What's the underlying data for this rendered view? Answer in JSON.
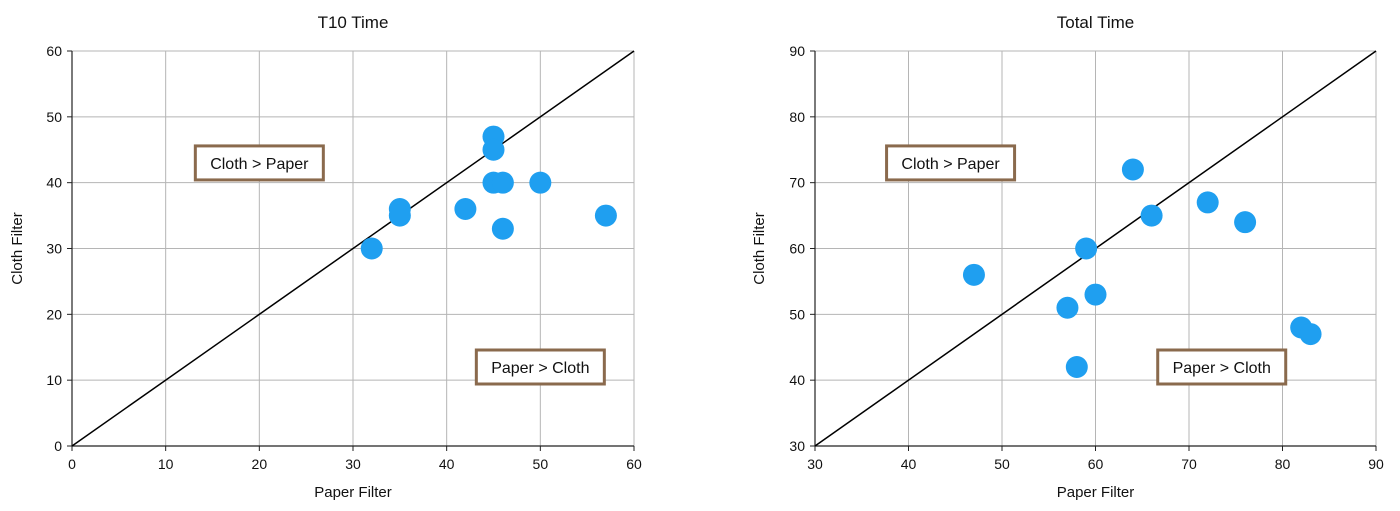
{
  "chart_data": [
    {
      "type": "scatter",
      "title": "T10 Time",
      "xlabel": "Paper Filter",
      "ylabel": "Cloth Filter",
      "xlim": [
        0,
        60
      ],
      "ylim": [
        0,
        60
      ],
      "xticks": [
        0,
        10,
        20,
        30,
        40,
        50,
        60
      ],
      "yticks": [
        0,
        10,
        20,
        30,
        40,
        50,
        60
      ],
      "grid": true,
      "reference_line": "y = x",
      "point_color": "#1f9ff0",
      "points": [
        {
          "x": 32,
          "y": 30
        },
        {
          "x": 35,
          "y": 36
        },
        {
          "x": 35,
          "y": 35
        },
        {
          "x": 42,
          "y": 36
        },
        {
          "x": 45,
          "y": 47
        },
        {
          "x": 45,
          "y": 45
        },
        {
          "x": 45,
          "y": 40
        },
        {
          "x": 46,
          "y": 40
        },
        {
          "x": 46,
          "y": 33
        },
        {
          "x": 50,
          "y": 40
        },
        {
          "x": 57,
          "y": 35
        }
      ],
      "annotations": [
        {
          "text": "Cloth > Paper",
          "x": 20,
          "y": 43
        },
        {
          "text": "Paper > Cloth",
          "x": 50,
          "y": 12
        }
      ]
    },
    {
      "type": "scatter",
      "title": "Total Time",
      "xlabel": "Paper Filter",
      "ylabel": "Cloth Filter",
      "xlim": [
        30,
        90
      ],
      "ylim": [
        30,
        90
      ],
      "xticks": [
        30,
        40,
        50,
        60,
        70,
        80,
        90
      ],
      "yticks": [
        30,
        40,
        50,
        60,
        70,
        80,
        90
      ],
      "grid": true,
      "reference_line": "y = x",
      "point_color": "#1f9ff0",
      "points": [
        {
          "x": 47,
          "y": 56
        },
        {
          "x": 57,
          "y": 51
        },
        {
          "x": 58,
          "y": 42
        },
        {
          "x": 59,
          "y": 60
        },
        {
          "x": 60,
          "y": 53
        },
        {
          "x": 64,
          "y": 72
        },
        {
          "x": 66,
          "y": 65
        },
        {
          "x": 72,
          "y": 67
        },
        {
          "x": 76,
          "y": 64
        },
        {
          "x": 82,
          "y": 48
        },
        {
          "x": 83,
          "y": 47
        }
      ],
      "annotations": [
        {
          "text": "Cloth > Paper",
          "x": 44.5,
          "y": 73
        },
        {
          "text": "Paper > Cloth",
          "x": 73.5,
          "y": 42
        }
      ]
    }
  ]
}
